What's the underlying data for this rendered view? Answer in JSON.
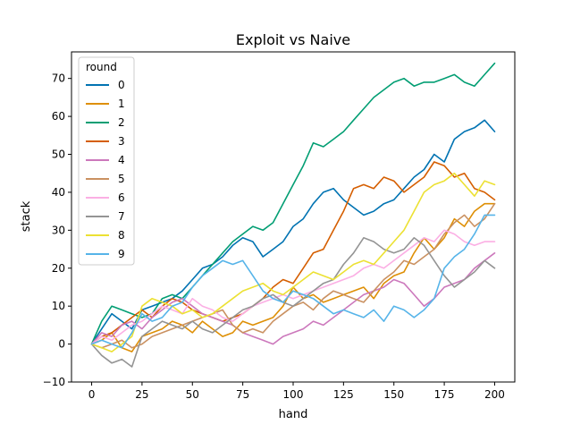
{
  "chart_data": {
    "type": "line",
    "title": "Exploit vs Naive",
    "xlabel": "hand",
    "ylabel": "stack",
    "xlim": [
      -10,
      210
    ],
    "ylim": [
      -10,
      77
    ],
    "x_ticks": [
      0,
      25,
      50,
      75,
      100,
      125,
      150,
      175,
      200
    ],
    "y_ticks": [
      -10,
      0,
      10,
      20,
      30,
      40,
      50,
      60,
      70
    ],
    "grid": false,
    "legend": {
      "title": "round",
      "placement": "top-left"
    },
    "series": [
      {
        "name": "0",
        "color": "#0173b2",
        "x": [
          0,
          5,
          10,
          15,
          20,
          25,
          30,
          35,
          40,
          45,
          50,
          55,
          60,
          65,
          70,
          75,
          80,
          85,
          90,
          95,
          100,
          105,
          110,
          115,
          120,
          125,
          130,
          135,
          140,
          145,
          150,
          155,
          160,
          165,
          170,
          175,
          180,
          185,
          190,
          195,
          200
        ],
        "y": [
          0,
          4,
          8,
          6,
          4,
          9,
          10,
          11,
          12,
          14,
          17,
          20,
          21,
          23,
          26,
          28,
          27,
          23,
          25,
          27,
          31,
          33,
          37,
          40,
          41,
          38,
          36,
          34,
          35,
          37,
          38,
          41,
          44,
          46,
          50,
          48,
          54,
          56,
          57,
          59,
          56
        ]
      },
      {
        "name": "1",
        "color": "#de8f05",
        "x": [
          0,
          5,
          10,
          15,
          20,
          25,
          30,
          35,
          40,
          45,
          50,
          55,
          60,
          65,
          70,
          75,
          80,
          85,
          90,
          95,
          100,
          105,
          110,
          115,
          120,
          125,
          130,
          135,
          140,
          145,
          150,
          155,
          160,
          165,
          170,
          175,
          180,
          185,
          190,
          195,
          200
        ],
        "y": [
          0,
          1,
          3,
          -1,
          -2,
          2,
          3,
          4,
          6,
          5,
          3,
          6,
          4,
          2,
          3,
          6,
          5,
          6,
          7,
          10,
          15,
          12,
          13,
          11,
          12,
          13,
          14,
          15,
          12,
          16,
          18,
          19,
          24,
          28,
          25,
          28,
          33,
          31,
          35,
          37,
          37
        ]
      },
      {
        "name": "2",
        "color": "#029e73",
        "x": [
          0,
          5,
          10,
          15,
          20,
          25,
          30,
          35,
          40,
          45,
          50,
          55,
          60,
          65,
          70,
          75,
          80,
          85,
          90,
          95,
          100,
          105,
          110,
          115,
          120,
          125,
          130,
          135,
          140,
          145,
          150,
          155,
          160,
          165,
          170,
          175,
          180,
          185,
          190,
          195,
          200
        ],
        "y": [
          0,
          6,
          10,
          9,
          8,
          7,
          8,
          12,
          13,
          12,
          15,
          18,
          21,
          24,
          27,
          29,
          31,
          30,
          32,
          37,
          42,
          47,
          53,
          52,
          54,
          56,
          59,
          62,
          65,
          67,
          69,
          70,
          68,
          69,
          69,
          70,
          71,
          69,
          68,
          71,
          74
        ]
      },
      {
        "name": "3",
        "color": "#d55e00",
        "x": [
          0,
          5,
          10,
          15,
          20,
          25,
          30,
          35,
          40,
          45,
          50,
          55,
          60,
          65,
          70,
          75,
          80,
          85,
          90,
          95,
          100,
          105,
          110,
          115,
          120,
          125,
          130,
          135,
          140,
          145,
          150,
          155,
          160,
          165,
          170,
          175,
          180,
          185,
          190,
          195,
          200
        ],
        "y": [
          0,
          2,
          3,
          5,
          7,
          9,
          7,
          10,
          12,
          11,
          9,
          8,
          7,
          6,
          7,
          8,
          10,
          12,
          15,
          17,
          16,
          20,
          24,
          25,
          30,
          35,
          41,
          42,
          41,
          44,
          43,
          40,
          42,
          44,
          48,
          47,
          44,
          45,
          41,
          40,
          38
        ]
      },
      {
        "name": "4",
        "color": "#cc78bc",
        "x": [
          0,
          5,
          10,
          15,
          20,
          25,
          30,
          35,
          40,
          45,
          50,
          55,
          60,
          65,
          70,
          75,
          80,
          85,
          90,
          95,
          100,
          105,
          110,
          115,
          120,
          125,
          130,
          135,
          140,
          145,
          150,
          155,
          160,
          165,
          170,
          175,
          180,
          185,
          190,
          195,
          200
        ],
        "y": [
          0,
          3,
          2,
          5,
          6,
          4,
          7,
          9,
          11,
          12,
          10,
          8,
          7,
          6,
          5,
          3,
          2,
          1,
          0,
          2,
          3,
          4,
          6,
          5,
          7,
          9,
          11,
          13,
          14,
          15,
          17,
          16,
          13,
          10,
          12,
          15,
          16,
          17,
          20,
          22,
          24
        ]
      },
      {
        "name": "5",
        "color": "#ca9161",
        "x": [
          0,
          5,
          10,
          15,
          20,
          25,
          30,
          35,
          40,
          45,
          50,
          55,
          60,
          65,
          70,
          75,
          80,
          85,
          90,
          95,
          100,
          105,
          110,
          115,
          120,
          125,
          130,
          135,
          140,
          145,
          150,
          155,
          160,
          165,
          170,
          175,
          180,
          185,
          190,
          195,
          200
        ],
        "y": [
          0,
          -1,
          0,
          1,
          -1,
          0,
          2,
          3,
          4,
          5,
          6,
          7,
          8,
          9,
          5,
          3,
          4,
          3,
          6,
          8,
          10,
          11,
          9,
          12,
          14,
          13,
          12,
          11,
          14,
          17,
          19,
          22,
          21,
          23,
          25,
          29,
          32,
          34,
          31,
          33,
          37
        ]
      },
      {
        "name": "6",
        "color": "#fbafe4",
        "x": [
          0,
          5,
          10,
          15,
          20,
          25,
          30,
          35,
          40,
          45,
          50,
          55,
          60,
          65,
          70,
          75,
          80,
          85,
          90,
          95,
          100,
          105,
          110,
          115,
          120,
          125,
          130,
          135,
          140,
          145,
          150,
          155,
          160,
          165,
          170,
          175,
          180,
          185,
          190,
          195,
          200
        ],
        "y": [
          0,
          2,
          1,
          3,
          5,
          6,
          8,
          10,
          9,
          8,
          12,
          10,
          9,
          7,
          6,
          8,
          10,
          11,
          12,
          13,
          12,
          13,
          14,
          15,
          16,
          17,
          18,
          20,
          21,
          20,
          22,
          24,
          26,
          28,
          27,
          30,
          29,
          27,
          26,
          27,
          27
        ]
      },
      {
        "name": "7",
        "color": "#949494",
        "x": [
          0,
          5,
          10,
          15,
          20,
          25,
          30,
          35,
          40,
          45,
          50,
          55,
          60,
          65,
          70,
          75,
          80,
          85,
          90,
          95,
          100,
          105,
          110,
          115,
          120,
          125,
          130,
          135,
          140,
          145,
          150,
          155,
          160,
          165,
          170,
          175,
          180,
          185,
          190,
          195,
          200
        ],
        "y": [
          0,
          -3,
          -5,
          -4,
          -6,
          2,
          4,
          6,
          5,
          4,
          6,
          4,
          3,
          5,
          7,
          9,
          10,
          12,
          13,
          11,
          10,
          12,
          14,
          16,
          17,
          21,
          24,
          28,
          27,
          25,
          24,
          25,
          28,
          26,
          22,
          18,
          15,
          17,
          19,
          22,
          20
        ]
      },
      {
        "name": "8",
        "color": "#ece133",
        "x": [
          0,
          5,
          10,
          15,
          20,
          25,
          30,
          35,
          40,
          45,
          50,
          55,
          60,
          65,
          70,
          75,
          80,
          85,
          90,
          95,
          100,
          105,
          110,
          115,
          120,
          125,
          130,
          135,
          140,
          145,
          150,
          155,
          160,
          165,
          170,
          175,
          180,
          185,
          190,
          195,
          200
        ],
        "y": [
          0,
          -1,
          -2,
          0,
          2,
          10,
          12,
          11,
          10,
          8,
          9,
          7,
          8,
          10,
          12,
          14,
          15,
          16,
          14,
          13,
          15,
          17,
          19,
          18,
          17,
          19,
          21,
          22,
          21,
          24,
          27,
          30,
          35,
          40,
          42,
          43,
          45,
          42,
          39,
          43,
          42
        ]
      },
      {
        "name": "9",
        "color": "#56b4e9",
        "x": [
          0,
          5,
          10,
          15,
          20,
          25,
          30,
          35,
          40,
          45,
          50,
          55,
          60,
          65,
          70,
          75,
          80,
          85,
          90,
          95,
          100,
          105,
          110,
          115,
          120,
          125,
          130,
          135,
          140,
          145,
          150,
          155,
          160,
          165,
          170,
          175,
          180,
          185,
          190,
          195,
          200
        ],
        "y": [
          0,
          1,
          0,
          -1,
          3,
          8,
          6,
          7,
          10,
          11,
          15,
          18,
          20,
          22,
          21,
          22,
          18,
          14,
          12,
          11,
          14,
          13,
          12,
          10,
          8,
          9,
          8,
          7,
          9,
          6,
          10,
          9,
          7,
          9,
          12,
          20,
          23,
          25,
          29,
          34,
          34
        ]
      }
    ]
  }
}
